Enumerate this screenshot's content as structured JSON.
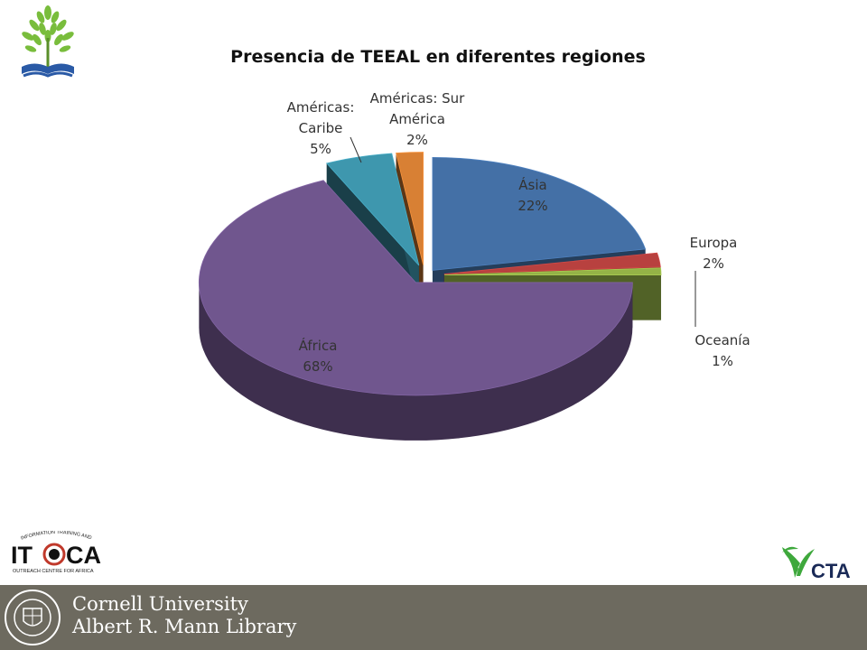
{
  "slide": {
    "title": "Presencia de TEEAL en diferentes regiones",
    "footer": {
      "institution": "Cornell University",
      "library": "Albert R. Mann Library"
    },
    "logos": {
      "top_left": "tree-book-logo",
      "itoca": {
        "word": "ITOCA",
        "arc_text": "INFORMATION TRAINING AND",
        "lower_text": "OUTREACH CENTRE FOR AFRICA"
      },
      "cta": {
        "word": "CTA"
      },
      "cornell_seal": "cornell-seal"
    }
  },
  "chart_data": {
    "type": "pie",
    "title": "Presencia de TEEAL en diferentes regiones",
    "three_d": true,
    "exploded": true,
    "slices": [
      {
        "label_lines": [
          "Ásia"
        ],
        "label": "Ásia",
        "value": 22,
        "percent_label": "22%",
        "color": "#4470a6"
      },
      {
        "label_lines": [
          "Europa"
        ],
        "label": "Europa",
        "value": 2,
        "percent_label": "2%",
        "color": "#b8413f"
      },
      {
        "label_lines": [
          "Oceanía"
        ],
        "label": "Oceanía",
        "value": 1,
        "percent_label": "1%",
        "color": "#94b347"
      },
      {
        "label_lines": [
          "África"
        ],
        "label": "África",
        "value": 68,
        "percent_label": "68%",
        "color": "#70568e"
      },
      {
        "label_lines": [
          "Américas:",
          "Caribe"
        ],
        "label": "Américas: Caribe",
        "value": 5,
        "percent_label": "5%",
        "color": "#3e97ae"
      },
      {
        "label_lines": [
          "Américas: Sur",
          "América"
        ],
        "label": "Américas: Sur América",
        "value": 2,
        "percent_label": "2%",
        "color": "#d88034"
      }
    ]
  }
}
